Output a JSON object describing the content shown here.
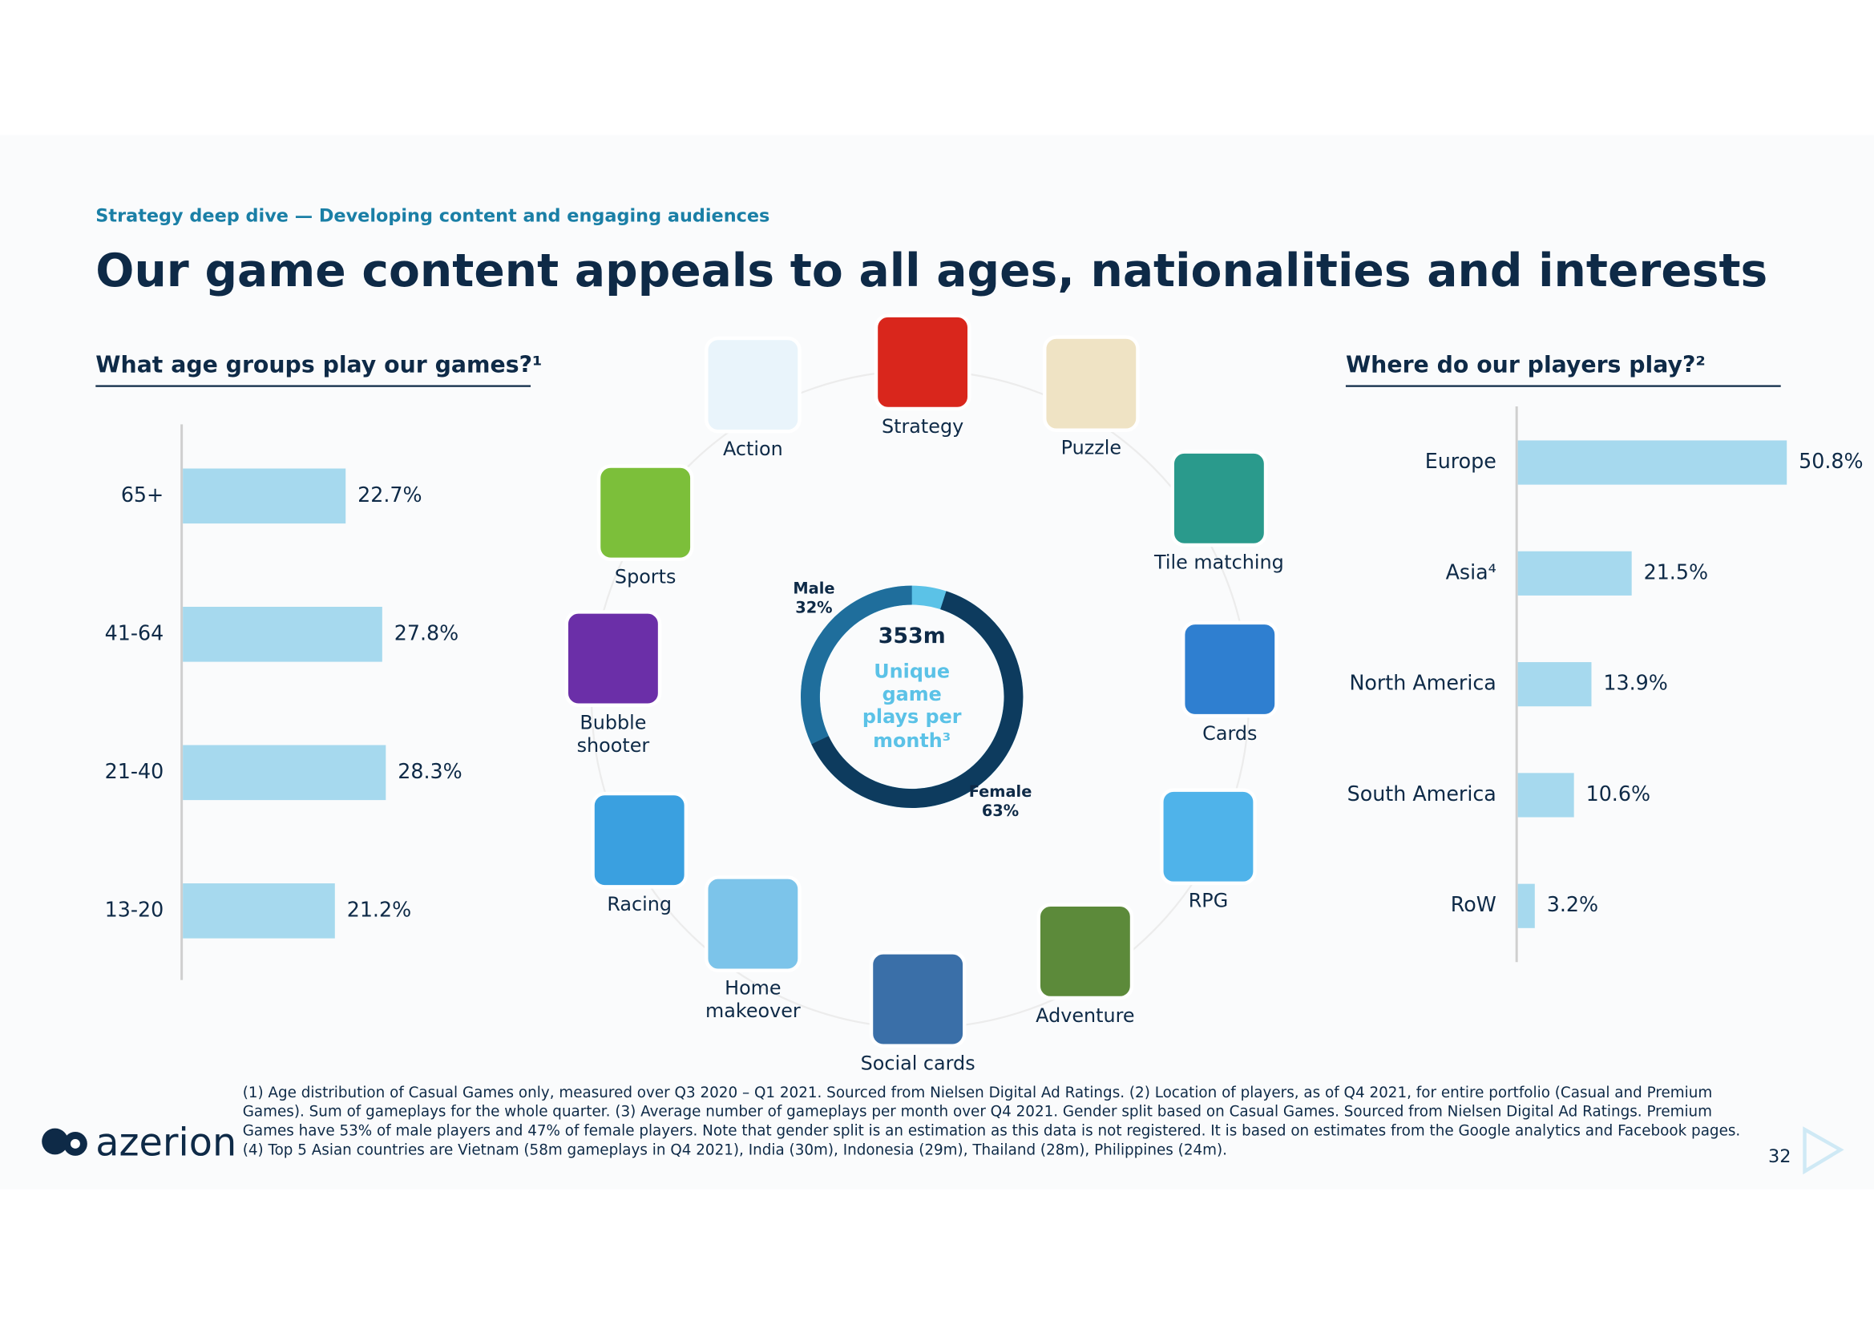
{
  "header": {
    "kicker": "Strategy deep dive — Developing content and engaging audiences",
    "title": "Our game content appeals to all ages, nationalities and interests"
  },
  "chart_data": [
    {
      "type": "bar",
      "orientation": "horizontal",
      "title": "What age groups play our games?¹",
      "categories": [
        "65+",
        "41-64",
        "21-40",
        "13-20"
      ],
      "values": [
        22.7,
        27.8,
        28.3,
        21.2
      ],
      "value_labels": [
        "22.7%",
        "27.8%",
        "28.3%",
        "21.2%"
      ],
      "color": "#a6d9ee"
    },
    {
      "type": "donut",
      "center_value": "353m",
      "center_label": "Unique game plays per month³",
      "categories": [
        "Male",
        "Female"
      ],
      "values": [
        32,
        63
      ],
      "value_labels": [
        "32%",
        "63%"
      ],
      "colors": [
        "#1f6e9c",
        "#0d3b5e"
      ]
    },
    {
      "type": "bar",
      "orientation": "horizontal",
      "title": "Where do our players play?²",
      "categories": [
        "Europe",
        "Asia⁴",
        "North America",
        "South America",
        "RoW"
      ],
      "values": [
        50.8,
        21.5,
        13.9,
        10.6,
        3.2
      ],
      "value_labels": [
        "50.8%",
        "21.5%",
        "13.9%",
        "10.6%",
        "3.2%"
      ],
      "color": "#a6d9ee"
    }
  ],
  "genres": [
    "Action",
    "Strategy",
    "Puzzle",
    "Tile matching",
    "Cards",
    "RPG",
    "Adventure",
    "Social cards",
    "Home makeover",
    "Racing",
    "Bubble shooter",
    "Sports"
  ],
  "footnote": "(1) Age distribution of Casual Games only, measured over Q3 2020 – Q1 2021. Sourced from Nielsen Digital Ad Ratings. (2) Location of players, as of Q4 2021, for entire portfolio (Casual and Premium Games). Sum of gameplays for the whole quarter. (3) Average number of gameplays per month over Q4 2021. Gender split based on Casual Games. Sourced from Nielsen Digital Ad Ratings. Premium Games have 53% of male players and 47% of female players. Note that gender split is an estimation as this data is not registered. It is based on estimates from the Google analytics and Facebook pages. (4) Top 5 Asian countries are Vietnam (58m gameplays in Q4 2021), India (30m), Indonesia (29m), Thailand (28m), Philippines (24m).",
  "logo": "azerion",
  "page_number": "32"
}
